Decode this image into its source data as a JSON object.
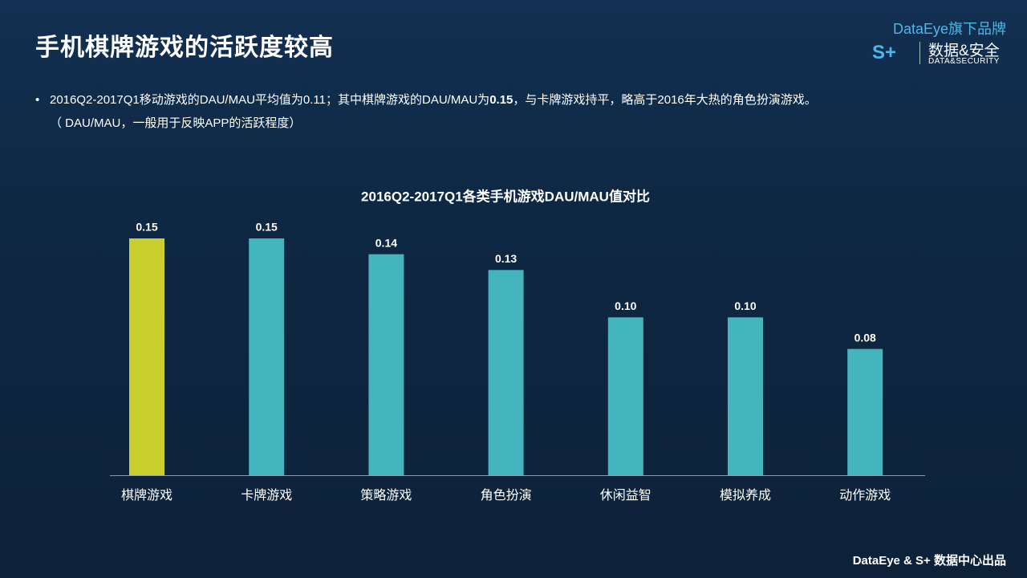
{
  "header": {
    "title": "手机棋牌游戏的活跃度较高"
  },
  "logo": {
    "brand": "DataEye旗下品牌",
    "mark": "S+",
    "name_cn": "数据&安全",
    "name_en": "DATA&SECURITY"
  },
  "bullets": [
    {
      "parts": [
        "2016Q2-2017Q1移动游戏的DAU/MAU平均值为0.11；其中棋牌游戏的DAU/MAU为",
        "0.15",
        "，与卡牌游戏持平，略高于2016年大热的角色扮演游戏。"
      ]
    },
    {
      "parts": [
        "（ DAU/MAU，一般用于反映APP的活跃程度）"
      ]
    }
  ],
  "footer": "DataEye & S+ 数据中心出品",
  "chart_data": {
    "type": "bar",
    "title": "2016Q2-2017Q1各类手机游戏DAU/MAU值对比",
    "categories": [
      "棋牌游戏",
      "卡牌游戏",
      "策略游戏",
      "角色扮演",
      "休闲益智",
      "模拟养成",
      "动作游戏"
    ],
    "values": [
      0.15,
      0.15,
      0.14,
      0.13,
      0.1,
      0.1,
      0.08
    ],
    "value_labels": [
      "0.15",
      "0.15",
      "0.14",
      "0.13",
      "0.10",
      "0.10",
      "0.08"
    ],
    "colors": [
      "#c9cf2a",
      "#45b5bd",
      "#45b5bd",
      "#45b5bd",
      "#45b5bd",
      "#45b5bd",
      "#45b5bd"
    ]
  }
}
